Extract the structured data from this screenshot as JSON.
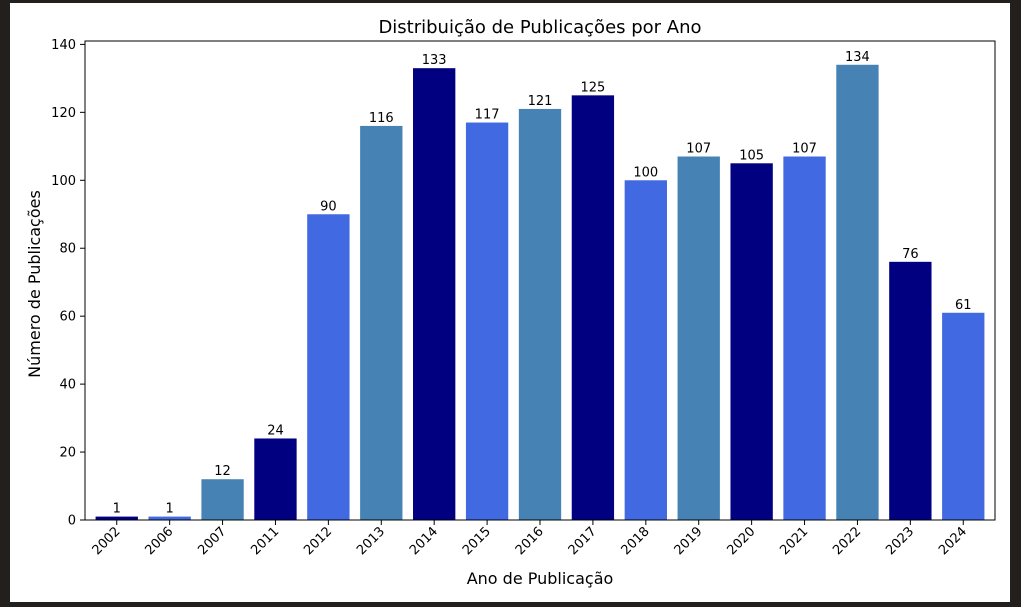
{
  "chart_data": {
    "type": "bar",
    "title": "Distribuição de Publicações por Ano",
    "xlabel": "Ano de Publicação",
    "ylabel": "Número de Publicações",
    "categories": [
      "2002",
      "2006",
      "2007",
      "2011",
      "2012",
      "2013",
      "2014",
      "2015",
      "2016",
      "2017",
      "2018",
      "2019",
      "2020",
      "2021",
      "2022",
      "2023",
      "2024"
    ],
    "values": [
      1,
      1,
      12,
      24,
      90,
      116,
      133,
      117,
      121,
      125,
      100,
      107,
      105,
      107,
      134,
      76,
      61
    ],
    "colors": [
      "#000080",
      "#4169e1",
      "#4682b4",
      "#000080",
      "#4169e1",
      "#4682b4",
      "#000080",
      "#4169e1",
      "#4682b4",
      "#000080",
      "#4169e1",
      "#4682b4",
      "#000080",
      "#4169e1",
      "#4682b4",
      "#000080",
      "#4169e1"
    ],
    "ylim": [
      0,
      141
    ],
    "yticks": [
      0,
      20,
      40,
      60,
      80,
      100,
      120,
      140
    ],
    "grid": false,
    "legend": "none"
  }
}
